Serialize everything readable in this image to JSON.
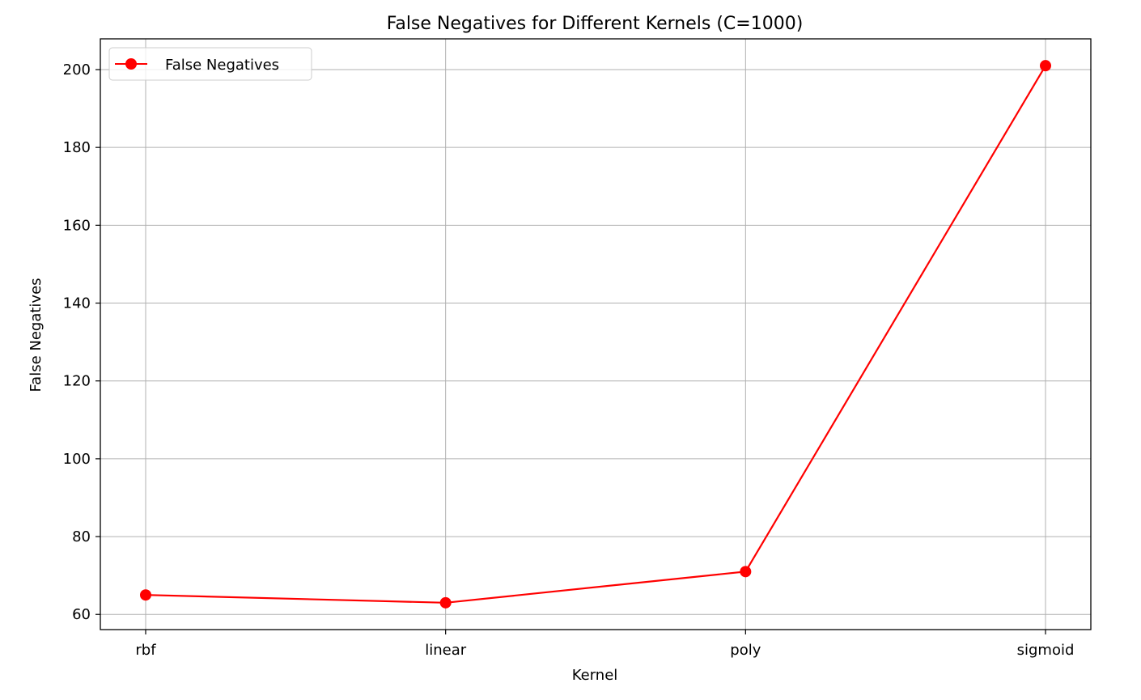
{
  "chart_data": {
    "type": "line",
    "title": "False Negatives for Different Kernels (C=1000)",
    "xlabel": "Kernel",
    "ylabel": "False Negatives",
    "categories": [
      "rbf",
      "linear",
      "poly",
      "sigmoid"
    ],
    "series": [
      {
        "name": "False Negatives",
        "values": [
          65,
          63,
          71,
          201
        ],
        "color": "#ff0000",
        "marker": "circle"
      }
    ],
    "yticks": [
      60,
      80,
      100,
      120,
      140,
      160,
      180,
      200
    ],
    "ylim": [
      56.1,
      207.9
    ],
    "grid": true,
    "legend_position": "top-left"
  }
}
